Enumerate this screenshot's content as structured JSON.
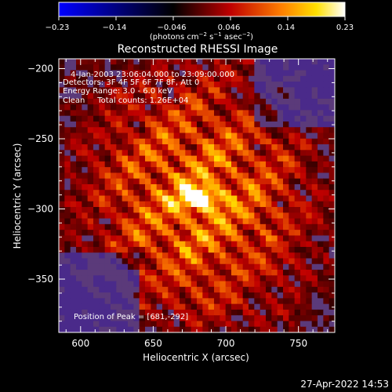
{
  "colorbar": {
    "tick_labels": [
      "−0.23",
      "−0.14",
      "−0.046",
      "0.046",
      "0.14",
      "0.23"
    ],
    "unit_label": "(photons cm",
    "unit_sup1": "−2",
    "unit_mid1": " s",
    "unit_sup2": "−1",
    "unit_mid2": " asec",
    "unit_sup3": "−2",
    "unit_end": ")",
    "colors": [
      "#0000ff",
      "#000000",
      "#ff0000",
      "#ffffff"
    ]
  },
  "chart_data": {
    "type": "heatmap",
    "title": "Reconstructed RHESSI Image",
    "xlabel": "Heliocentric X (arcsec)",
    "ylabel": "Heliocentric Y (arcsec)",
    "xlim": [
      585,
      775
    ],
    "ylim": [
      -388,
      -193
    ],
    "x_ticks": [
      600,
      650,
      700,
      750
    ],
    "y_ticks": [
      -200,
      -250,
      -300,
      -350
    ],
    "x_tick_labels": [
      "600",
      "650",
      "700",
      "750"
    ],
    "y_tick_labels": [
      "−200",
      "−250",
      "−300",
      "−350"
    ],
    "value_range": [
      -0.23,
      0.23
    ],
    "grid_size": [
      48,
      48
    ],
    "peak": {
      "x": 681,
      "y": -292,
      "value": 0.23
    },
    "annotations": [
      "4-Jan-2003 23:06:04.000 to 23:09:00.000",
      "Detectors: 3F 4F 5F 6F 7F 8F, Att 0",
      "Energy Range: 3.0 - 6.0 keV",
      "Clean     Total counts: 1.26E+04"
    ],
    "peak_label": "Position of Peak = [681,-292]"
  },
  "footer": {
    "timestamp": "27-Apr-2022 14:53"
  }
}
